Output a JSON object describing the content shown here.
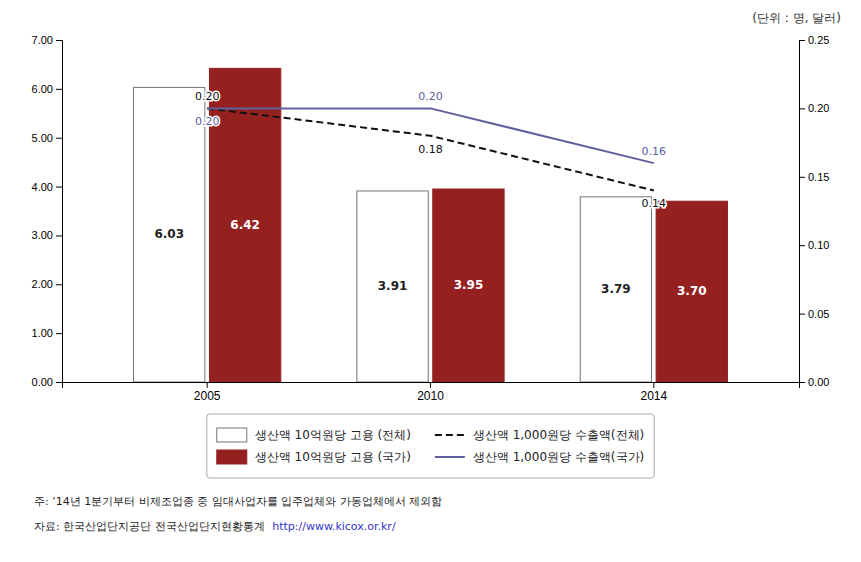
{
  "chart_data": {
    "type": "bar",
    "categories": [
      "2005",
      "2010",
      "2014"
    ],
    "series": [
      {
        "name": "생산액 10억원당 고용 (전체)",
        "type": "bar",
        "color": "#FFFFFF",
        "values": [
          6.03,
          3.91,
          3.79
        ],
        "value_labels": [
          "6.03",
          "3.91",
          "3.79"
        ]
      },
      {
        "name": "생산액 10억원당 고용 (국가)",
        "type": "bar",
        "color": "#952020",
        "values": [
          6.42,
          3.95,
          3.7
        ],
        "value_labels": [
          "6.42",
          "3.95",
          "3.70"
        ]
      },
      {
        "name": "생산액 1,000원당 수출액(전체)",
        "type": "line",
        "axis": "y2",
        "color": "#111111",
        "line_style": "dashed",
        "values": [
          0.2,
          0.18,
          0.14
        ],
        "value_labels": [
          "0.20",
          "0.18",
          "0.14"
        ]
      },
      {
        "name": "생산액 1,000원당 수출액(국가)",
        "type": "line",
        "axis": "y2",
        "color": "#6060A0",
        "line_style": "solid",
        "values": [
          0.2,
          0.2,
          0.16
        ],
        "value_labels": [
          "0.20",
          "0.20",
          "0.16"
        ]
      }
    ],
    "ylim": [
      0.0,
      7.0
    ],
    "yticks": [
      {
        "value": 0,
        "label": "0.00"
      },
      {
        "value": 1,
        "label": "1.00"
      },
      {
        "value": 2,
        "label": "2.00"
      },
      {
        "value": 3,
        "label": "3.00"
      },
      {
        "value": 4,
        "label": "4.00"
      },
      {
        "value": 5,
        "label": "5.00"
      },
      {
        "value": 6,
        "label": "6.00"
      },
      {
        "value": 7,
        "label": "7.00"
      }
    ],
    "y2lim": [
      0.0,
      0.25
    ],
    "y2ticks": [
      {
        "value": 0,
        "label": "0.00"
      },
      {
        "value": 0.05,
        "label": "0.05"
      },
      {
        "value": 0.1,
        "label": "0.10"
      },
      {
        "value": 0.15,
        "label": "0.15"
      },
      {
        "value": 0.2,
        "label": "0.20"
      },
      {
        "value": 0.25,
        "label": "0.25"
      }
    ],
    "data_labels": true,
    "legend": "bottom",
    "grid": false,
    "annotations": [
      "(단위 : 명, 달러)",
      "주:  ‘14년 1분기부터 비제조업종 중 임대사업자를 입주업체와 가동업체에서 제외함",
      "자료: 한국산업단지공단 전국산업단지현황통계 ",
      "http://www.kicox.or.kr/"
    ]
  }
}
